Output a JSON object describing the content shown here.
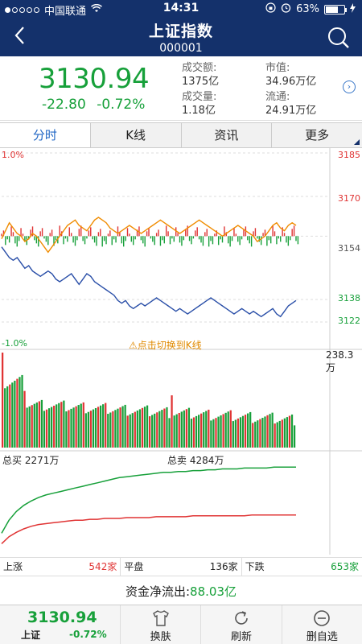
{
  "status_bar": {
    "carrier": "中国联通",
    "time": "14:31",
    "battery": "63%",
    "battery_level": 0.63
  },
  "header": {
    "title": "上证指数",
    "code": "000001"
  },
  "quote": {
    "price": "3130.94",
    "change": "-22.80",
    "change_pct": "-0.72%",
    "turnover_label": "成交额:",
    "turnover": "1375亿",
    "volume_label": "成交量:",
    "volume": "1.18亿",
    "market_cap_label": "市值:",
    "market_cap": "34.96万亿",
    "float_cap_label": "流通:",
    "float_cap": "24.91万亿"
  },
  "tabs": [
    {
      "label": "分时",
      "active": true
    },
    {
      "label": "K线",
      "active": false
    },
    {
      "label": "资讯",
      "active": false
    },
    {
      "label": "更多",
      "active": false
    }
  ],
  "chart_axes": {
    "pct_top": "1.0%",
    "pct_bottom": "-1.0%",
    "y_ticks": [
      "3185",
      "3170",
      "3154",
      "3138",
      "3122"
    ],
    "vol_max": "238.3万",
    "hint": "⚠点击切换到K线",
    "buy_total_label": "总买",
    "buy_total": "2271万",
    "sell_total_label": "总卖",
    "sell_total": "4284万"
  },
  "chart_data": {
    "type": "line",
    "ylim": [
      3122,
      3185
    ],
    "prev_close": 3154,
    "series": [
      {
        "name": "",
        "color": "#2a4fa8",
        "values": [
          3150,
          3148,
          3146,
          3145,
          3146,
          3144,
          3142,
          3143,
          3141,
          3140,
          3139,
          3140,
          3141,
          3140,
          3138,
          3137,
          3138,
          3139,
          3140,
          3138,
          3136,
          3138,
          3140,
          3139,
          3137,
          3136,
          3135,
          3134,
          3133,
          3132,
          3130,
          3129,
          3130,
          3128,
          3127,
          3128,
          3129,
          3128,
          3129,
          3130,
          3131,
          3130,
          3129,
          3128,
          3127,
          3126,
          3127,
          3126,
          3125,
          3126,
          3127,
          3128,
          3129,
          3130,
          3131,
          3130,
          3129,
          3128,
          3127,
          3126,
          3125,
          3126,
          3127,
          3126,
          3125,
          3126,
          3125,
          3124,
          3125,
          3126,
          3127,
          3125,
          3124,
          3126,
          3128,
          3129,
          3130
        ]
      },
      {
        "name": "",
        "color": "#f08c00",
        "values": [
          3153,
          3156,
          3159,
          3157,
          3155,
          3154,
          3152,
          3153,
          3155,
          3154,
          3152,
          3150,
          3148,
          3150,
          3152,
          3154,
          3156,
          3158,
          3159,
          3160,
          3158,
          3157,
          3156,
          3158,
          3160,
          3161,
          3160,
          3159,
          3157,
          3156,
          3155,
          3156,
          3157,
          3158,
          3157,
          3156,
          3155,
          3156,
          3157,
          3158,
          3159,
          3160,
          3159,
          3158,
          3157,
          3156,
          3155,
          3156,
          3157,
          3158,
          3159,
          3160,
          3159,
          3158,
          3157,
          3156,
          3155,
          3154,
          3155,
          3156,
          3157,
          3158,
          3157,
          3156,
          3155,
          3154,
          3152,
          3153,
          3154,
          3156,
          3158,
          3159,
          3157,
          3156,
          3158,
          3159,
          3158
        ]
      }
    ],
    "buy_line": [
      0.2,
      0.35,
      0.45,
      0.52,
      0.57,
      0.61,
      0.64,
      0.66,
      0.68,
      0.7,
      0.72,
      0.74,
      0.76,
      0.78,
      0.8,
      0.82,
      0.84,
      0.85,
      0.86,
      0.87,
      0.88,
      0.89,
      0.9,
      0.9,
      0.91,
      0.91,
      0.92,
      0.92,
      0.93,
      0.93,
      0.94,
      0.94,
      0.94,
      0.95,
      0.95,
      0.95,
      0.95,
      0.96,
      0.96,
      0.96,
      0.96
    ],
    "sell_line": [
      0.08,
      0.16,
      0.21,
      0.25,
      0.28,
      0.3,
      0.31,
      0.32,
      0.33,
      0.34,
      0.35,
      0.35,
      0.36,
      0.36,
      0.37,
      0.37,
      0.37,
      0.38,
      0.38,
      0.38,
      0.38,
      0.39,
      0.39,
      0.39,
      0.39,
      0.39,
      0.4,
      0.4,
      0.4,
      0.4,
      0.4,
      0.4,
      0.4,
      0.4,
      0.41,
      0.41,
      0.41,
      0.41,
      0.41,
      0.41,
      0.41
    ]
  },
  "breadth": {
    "up_label": "上涨",
    "up_count": "542家",
    "flat_label": "平盘",
    "flat_count": "136家",
    "down_label": "下跌",
    "down_count": "653家"
  },
  "flow": {
    "label": "资金净流出:",
    "amount": "88.03亿"
  },
  "bottom_bar": {
    "price": "3130.94",
    "name": "上证",
    "change_pct": "-0.72%",
    "skin_label": "换肤",
    "refresh_label": "刷新",
    "remove_label": "删自选"
  }
}
